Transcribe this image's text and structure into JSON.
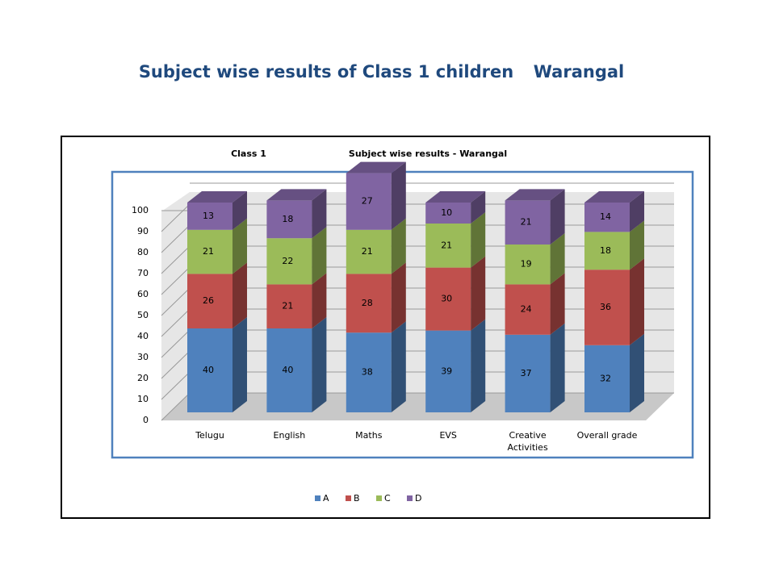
{
  "page_title": "Subject wise results of Class 1 children",
  "page_subtitle": "Warangal",
  "chart_data": {
    "type": "bar3d_stacked",
    "title": "Class 1",
    "subtitle": "Subject wise results - Warangal",
    "categories": [
      "Telugu",
      "English",
      "Maths",
      "EVS",
      "Creative Activities",
      "Overall grade"
    ],
    "series": [
      {
        "name": "A",
        "color": "#4f81bd",
        "values": [
          40,
          40,
          38,
          39,
          37,
          32
        ]
      },
      {
        "name": "B",
        "color": "#c0504d",
        "values": [
          26,
          21,
          28,
          30,
          24,
          36
        ]
      },
      {
        "name": "C",
        "color": "#9bbb59",
        "values": [
          21,
          22,
          21,
          21,
          19,
          18
        ]
      },
      {
        "name": "D",
        "color": "#8064a2",
        "values": [
          13,
          18,
          27,
          10,
          21,
          14
        ]
      }
    ],
    "ylim": [
      0,
      100
    ],
    "yticks": [
      0,
      10,
      20,
      30,
      40,
      50,
      60,
      70,
      80,
      90,
      100
    ],
    "grid": true,
    "legend": "bottom"
  }
}
